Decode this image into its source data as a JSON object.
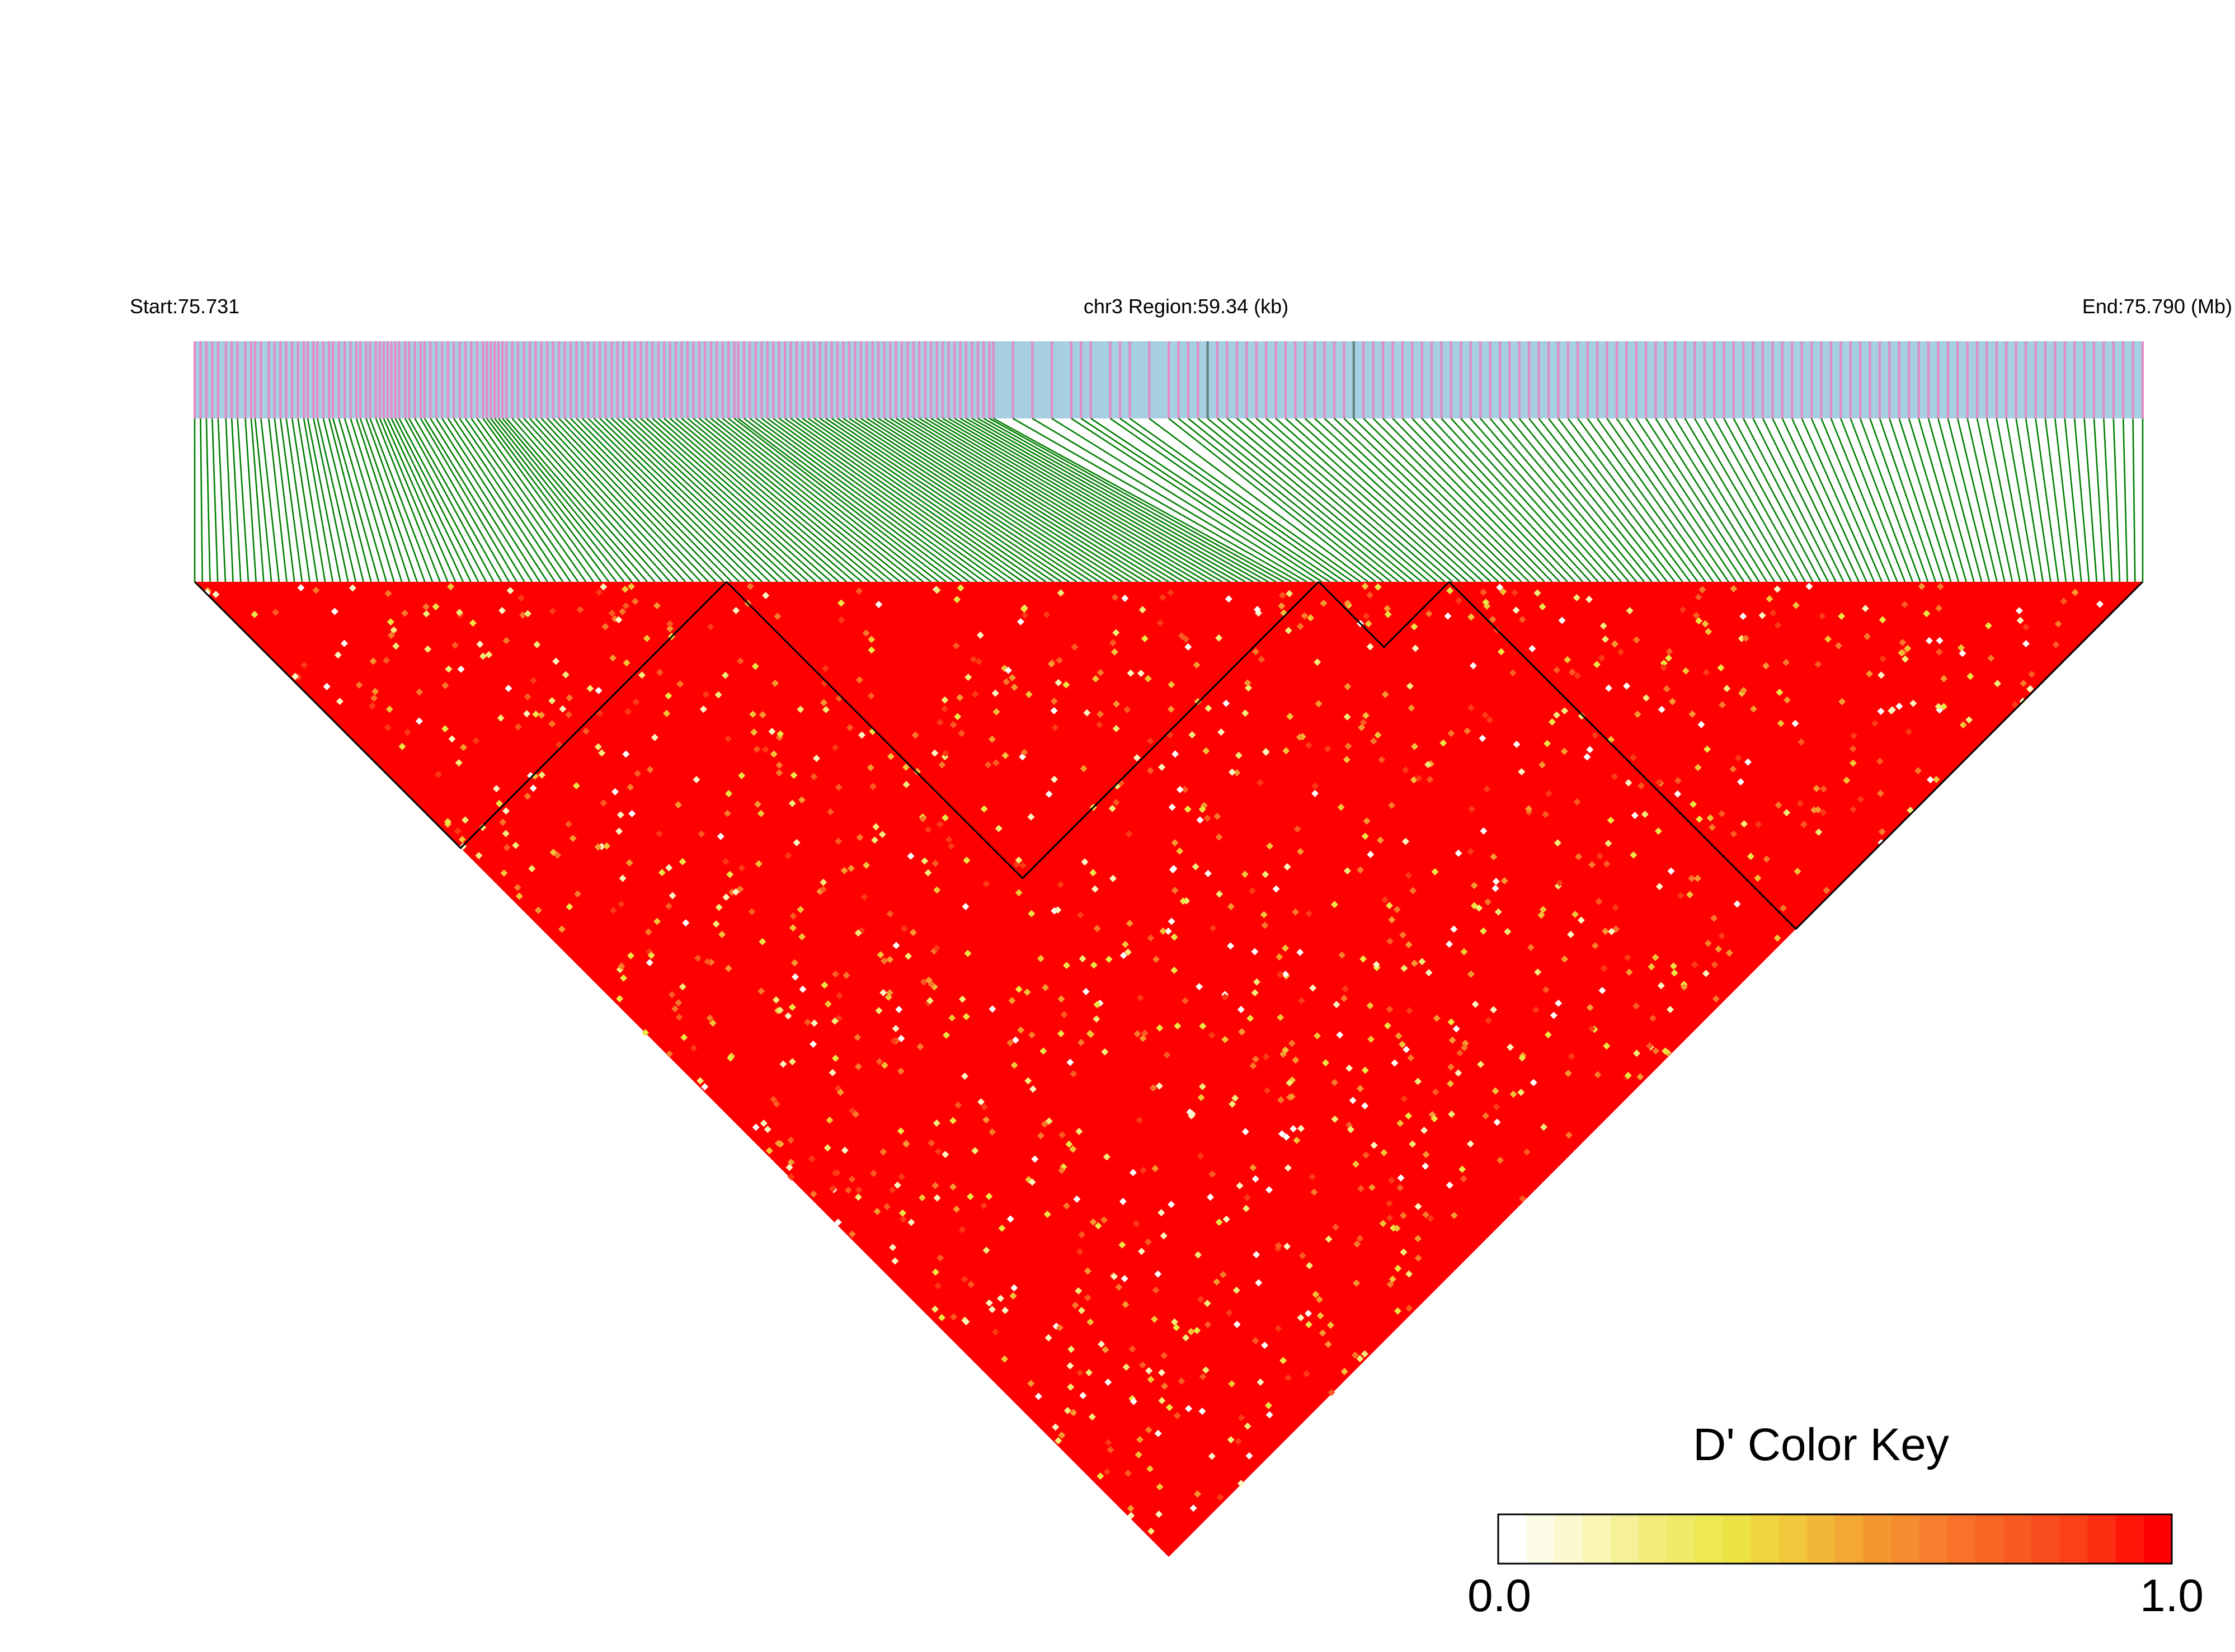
{
  "chart_data": {
    "type": "heatmap",
    "variant": "ld-triangle",
    "region_start_label": "Start:75.731",
    "region_title": "chr3 Region:59.34 (kb)",
    "region_end_label": "End:75.790 (Mb)",
    "region_start_mb": 75.731,
    "region_end_mb": 75.79,
    "region_size_kb": 59.34,
    "colors": {
      "snp_bar_background": "#a6cfe3",
      "snp_mark": "#e58ac4",
      "snp_mark_alt": "#5f7f7a",
      "connector_line": "#007f00",
      "ld_high": "#ff0000",
      "ld_low": "#ffffff",
      "block_outline": "#000000"
    },
    "snp_count_approx": 360,
    "snp_positions_fraction": [
      0.0,
      0.003,
      0.006,
      0.009,
      0.012,
      0.016,
      0.019,
      0.022,
      0.026,
      0.029,
      0.031,
      0.034,
      0.038,
      0.041,
      0.044,
      0.047,
      0.05,
      0.053,
      0.056,
      0.058,
      0.061,
      0.063,
      0.066,
      0.069,
      0.071,
      0.074,
      0.077,
      0.08,
      0.083,
      0.085,
      0.088,
      0.09,
      0.093,
      0.095,
      0.097,
      0.099,
      0.101,
      0.103,
      0.105,
      0.108,
      0.11,
      0.113,
      0.116,
      0.118,
      0.121,
      0.124,
      0.127,
      0.13,
      0.133,
      0.136,
      0.139,
      0.142,
      0.145,
      0.148,
      0.15,
      0.152,
      0.154,
      0.156,
      0.158,
      0.16,
      0.163,
      0.166,
      0.169,
      0.172,
      0.175,
      0.178,
      0.181,
      0.184,
      0.187,
      0.19,
      0.193,
      0.196,
      0.199,
      0.202,
      0.205,
      0.208,
      0.211,
      0.214,
      0.217,
      0.22,
      0.223,
      0.226,
      0.229,
      0.232,
      0.235,
      0.238,
      0.241,
      0.244,
      0.247,
      0.25,
      0.253,
      0.256,
      0.259,
      0.262,
      0.265,
      0.268,
      0.271,
      0.274,
      0.277,
      0.279,
      0.282,
      0.285,
      0.288,
      0.291,
      0.294,
      0.297,
      0.3,
      0.303,
      0.306,
      0.309,
      0.312,
      0.315,
      0.318,
      0.321,
      0.324,
      0.327,
      0.33,
      0.333,
      0.336,
      0.339,
      0.342,
      0.345,
      0.348,
      0.351,
      0.354,
      0.357,
      0.36,
      0.363,
      0.366,
      0.369,
      0.372,
      0.375,
      0.378,
      0.381,
      0.384,
      0.387,
      0.39,
      0.393,
      0.396,
      0.399,
      0.402,
      0.405,
      0.408,
      0.41,
      0.42,
      0.43,
      0.44,
      0.45,
      0.455,
      0.46,
      0.47,
      0.475,
      0.48,
      0.49,
      0.5,
      0.505,
      0.51,
      0.515,
      0.52,
      0.525,
      0.53,
      0.535,
      0.54,
      0.545,
      0.55,
      0.555,
      0.56,
      0.565,
      0.57,
      0.575,
      0.58,
      0.585,
      0.59,
      0.595,
      0.6,
      0.605,
      0.61,
      0.615,
      0.62,
      0.625,
      0.63,
      0.635,
      0.64,
      0.645,
      0.65,
      0.655,
      0.66,
      0.665,
      0.67,
      0.675,
      0.68,
      0.685,
      0.69,
      0.695,
      0.7,
      0.705,
      0.71,
      0.715,
      0.72,
      0.725,
      0.73,
      0.735,
      0.74,
      0.745,
      0.75,
      0.755,
      0.76,
      0.765,
      0.77,
      0.775,
      0.78,
      0.785,
      0.79,
      0.795,
      0.8,
      0.805,
      0.81,
      0.815,
      0.82,
      0.825,
      0.83,
      0.835,
      0.84,
      0.845,
      0.85,
      0.855,
      0.86,
      0.865,
      0.87,
      0.875,
      0.88,
      0.885,
      0.89,
      0.895,
      0.9,
      0.905,
      0.91,
      0.915,
      0.92,
      0.925,
      0.93,
      0.935,
      0.94,
      0.945,
      0.95,
      0.955,
      0.96,
      0.965,
      0.97,
      0.975,
      0.98,
      0.985,
      0.99,
      0.995,
      1.0
    ],
    "haplotype_blocks_snp_fraction": [
      [
        0.0,
        0.273
      ],
      [
        0.273,
        0.577
      ],
      [
        0.577,
        0.644
      ],
      [
        0.644,
        1.0
      ]
    ],
    "ld_fraction_high": 0.93,
    "color_key": {
      "title": "D' Color Key",
      "min_label": "0.0",
      "max_label": "1.0",
      "min": 0.0,
      "max": 1.0,
      "stops": [
        "#ffffff",
        "#fbf7c2",
        "#f2ec7a",
        "#ece645",
        "#f2c43a",
        "#f59a32",
        "#f77a2c",
        "#f95b22",
        "#fc3a16",
        "#ff0000"
      ]
    }
  }
}
